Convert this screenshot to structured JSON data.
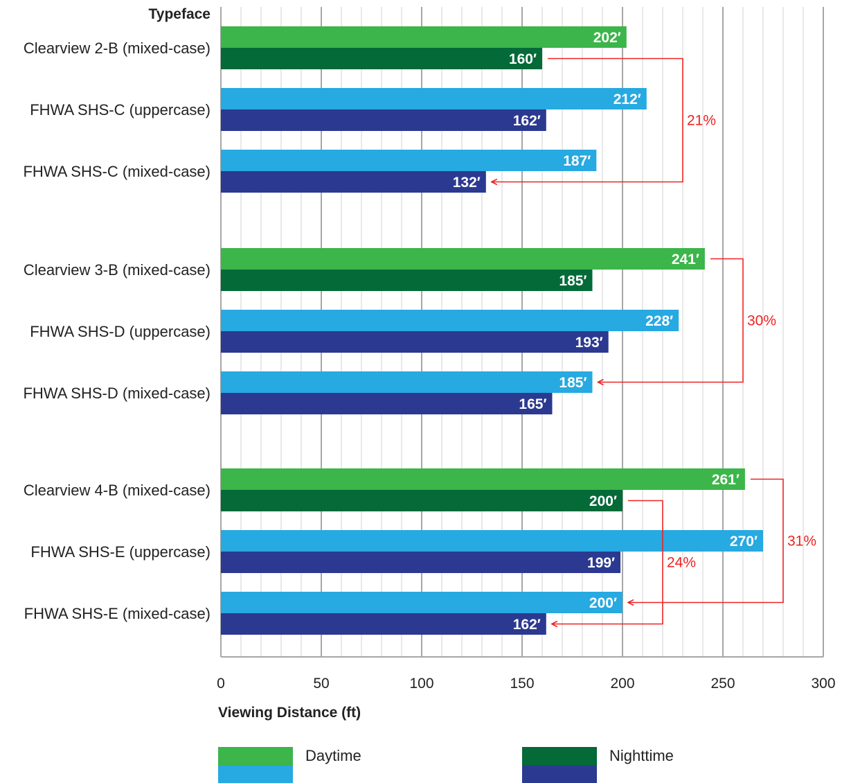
{
  "chart_data": {
    "type": "bar",
    "orientation": "horizontal",
    "category_axis_title": "Typeface",
    "xlabel": "Viewing Distance (ft)",
    "xlim": [
      0,
      300
    ],
    "x_ticks": [
      0,
      50,
      100,
      150,
      200,
      250,
      300
    ],
    "minor_grid_step": 10,
    "grid": true,
    "unit_suffix": "′",
    "categories": [
      "Clearview 2-B (mixed-case)",
      "FHWA SHS-C (uppercase)",
      "FHWA SHS-C (mixed-case)",
      "Clearview 3-B (mixed-case)",
      "FHWA SHS-D (uppercase)",
      "FHWA SHS-D (mixed-case)",
      "Clearview 4-B (mixed-case)",
      "FHWA SHS-E (uppercase)",
      "FHWA SHS-E (mixed-case)"
    ],
    "series": [
      {
        "name": "Daytime",
        "values": [
          202,
          212,
          187,
          241,
          228,
          185,
          261,
          270,
          200
        ]
      },
      {
        "name": "Nighttime",
        "values": [
          160,
          162,
          132,
          185,
          193,
          165,
          200,
          199,
          162
        ]
      }
    ],
    "colors": {
      "clearview_day": "#3cb54a",
      "clearview_night": "#036a38",
      "fhwa_day": "#27a9e1",
      "fhwa_night": "#2b3990",
      "annotation": "#ee2222",
      "grid_major": "#a6a6a6",
      "grid_minor": "#d0d0d0"
    },
    "legend": {
      "placement": "bottom",
      "items": [
        {
          "label": "Daytime",
          "colors": [
            "#3cb54a",
            "#27a9e1"
          ]
        },
        {
          "label": "Nighttime",
          "colors": [
            "#036a38",
            "#2b3990"
          ]
        }
      ]
    },
    "annotations": [
      {
        "text": "21%",
        "from_category": 0,
        "from_series": "Nighttime",
        "to_category": 2,
        "to_series": "Nighttime"
      },
      {
        "text": "30%",
        "from_category": 3,
        "from_series": "Daytime",
        "to_category": 5,
        "to_series": "Daytime"
      },
      {
        "text": "24%",
        "from_category": 6,
        "from_series": "Nighttime",
        "to_category": 8,
        "to_series": "Nighttime"
      },
      {
        "text": "31%",
        "from_category": 6,
        "from_series": "Daytime",
        "to_category": 8,
        "to_series": "Daytime"
      }
    ]
  }
}
